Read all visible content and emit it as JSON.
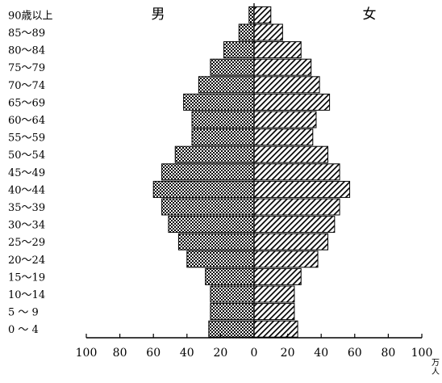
{
  "chart_data": {
    "type": "bar",
    "orientation": "horizontal-pyramid",
    "categories": [
      "0 ～ 4",
      "5 ～ 9",
      "10～14",
      "15～19",
      "20～24",
      "25～29",
      "30～34",
      "35～39",
      "40～44",
      "45～49",
      "50～54",
      "55～59",
      "60～64",
      "65～69",
      "70～74",
      "75～79",
      "80～84",
      "85～89",
      "90歳以上"
    ],
    "series": [
      {
        "name": "男",
        "side": "left",
        "pattern": "dots",
        "values": [
          27,
          26,
          26,
          29,
          40,
          45,
          51,
          55,
          60,
          55,
          47,
          37,
          37,
          42,
          33,
          26,
          18,
          9,
          3
        ]
      },
      {
        "name": "女",
        "side": "right",
        "pattern": "diagonal",
        "values": [
          26,
          24,
          24,
          28,
          38,
          44,
          48,
          51,
          57,
          51,
          44,
          35,
          37,
          45,
          39,
          34,
          28,
          17,
          10
        ]
      }
    ],
    "xticks": [
      "100",
      "80",
      "60",
      "40",
      "20",
      "0",
      "20",
      "40",
      "60",
      "80",
      "100"
    ],
    "xlim": [
      -100,
      100
    ],
    "unit_label": "万人",
    "grid": false
  }
}
